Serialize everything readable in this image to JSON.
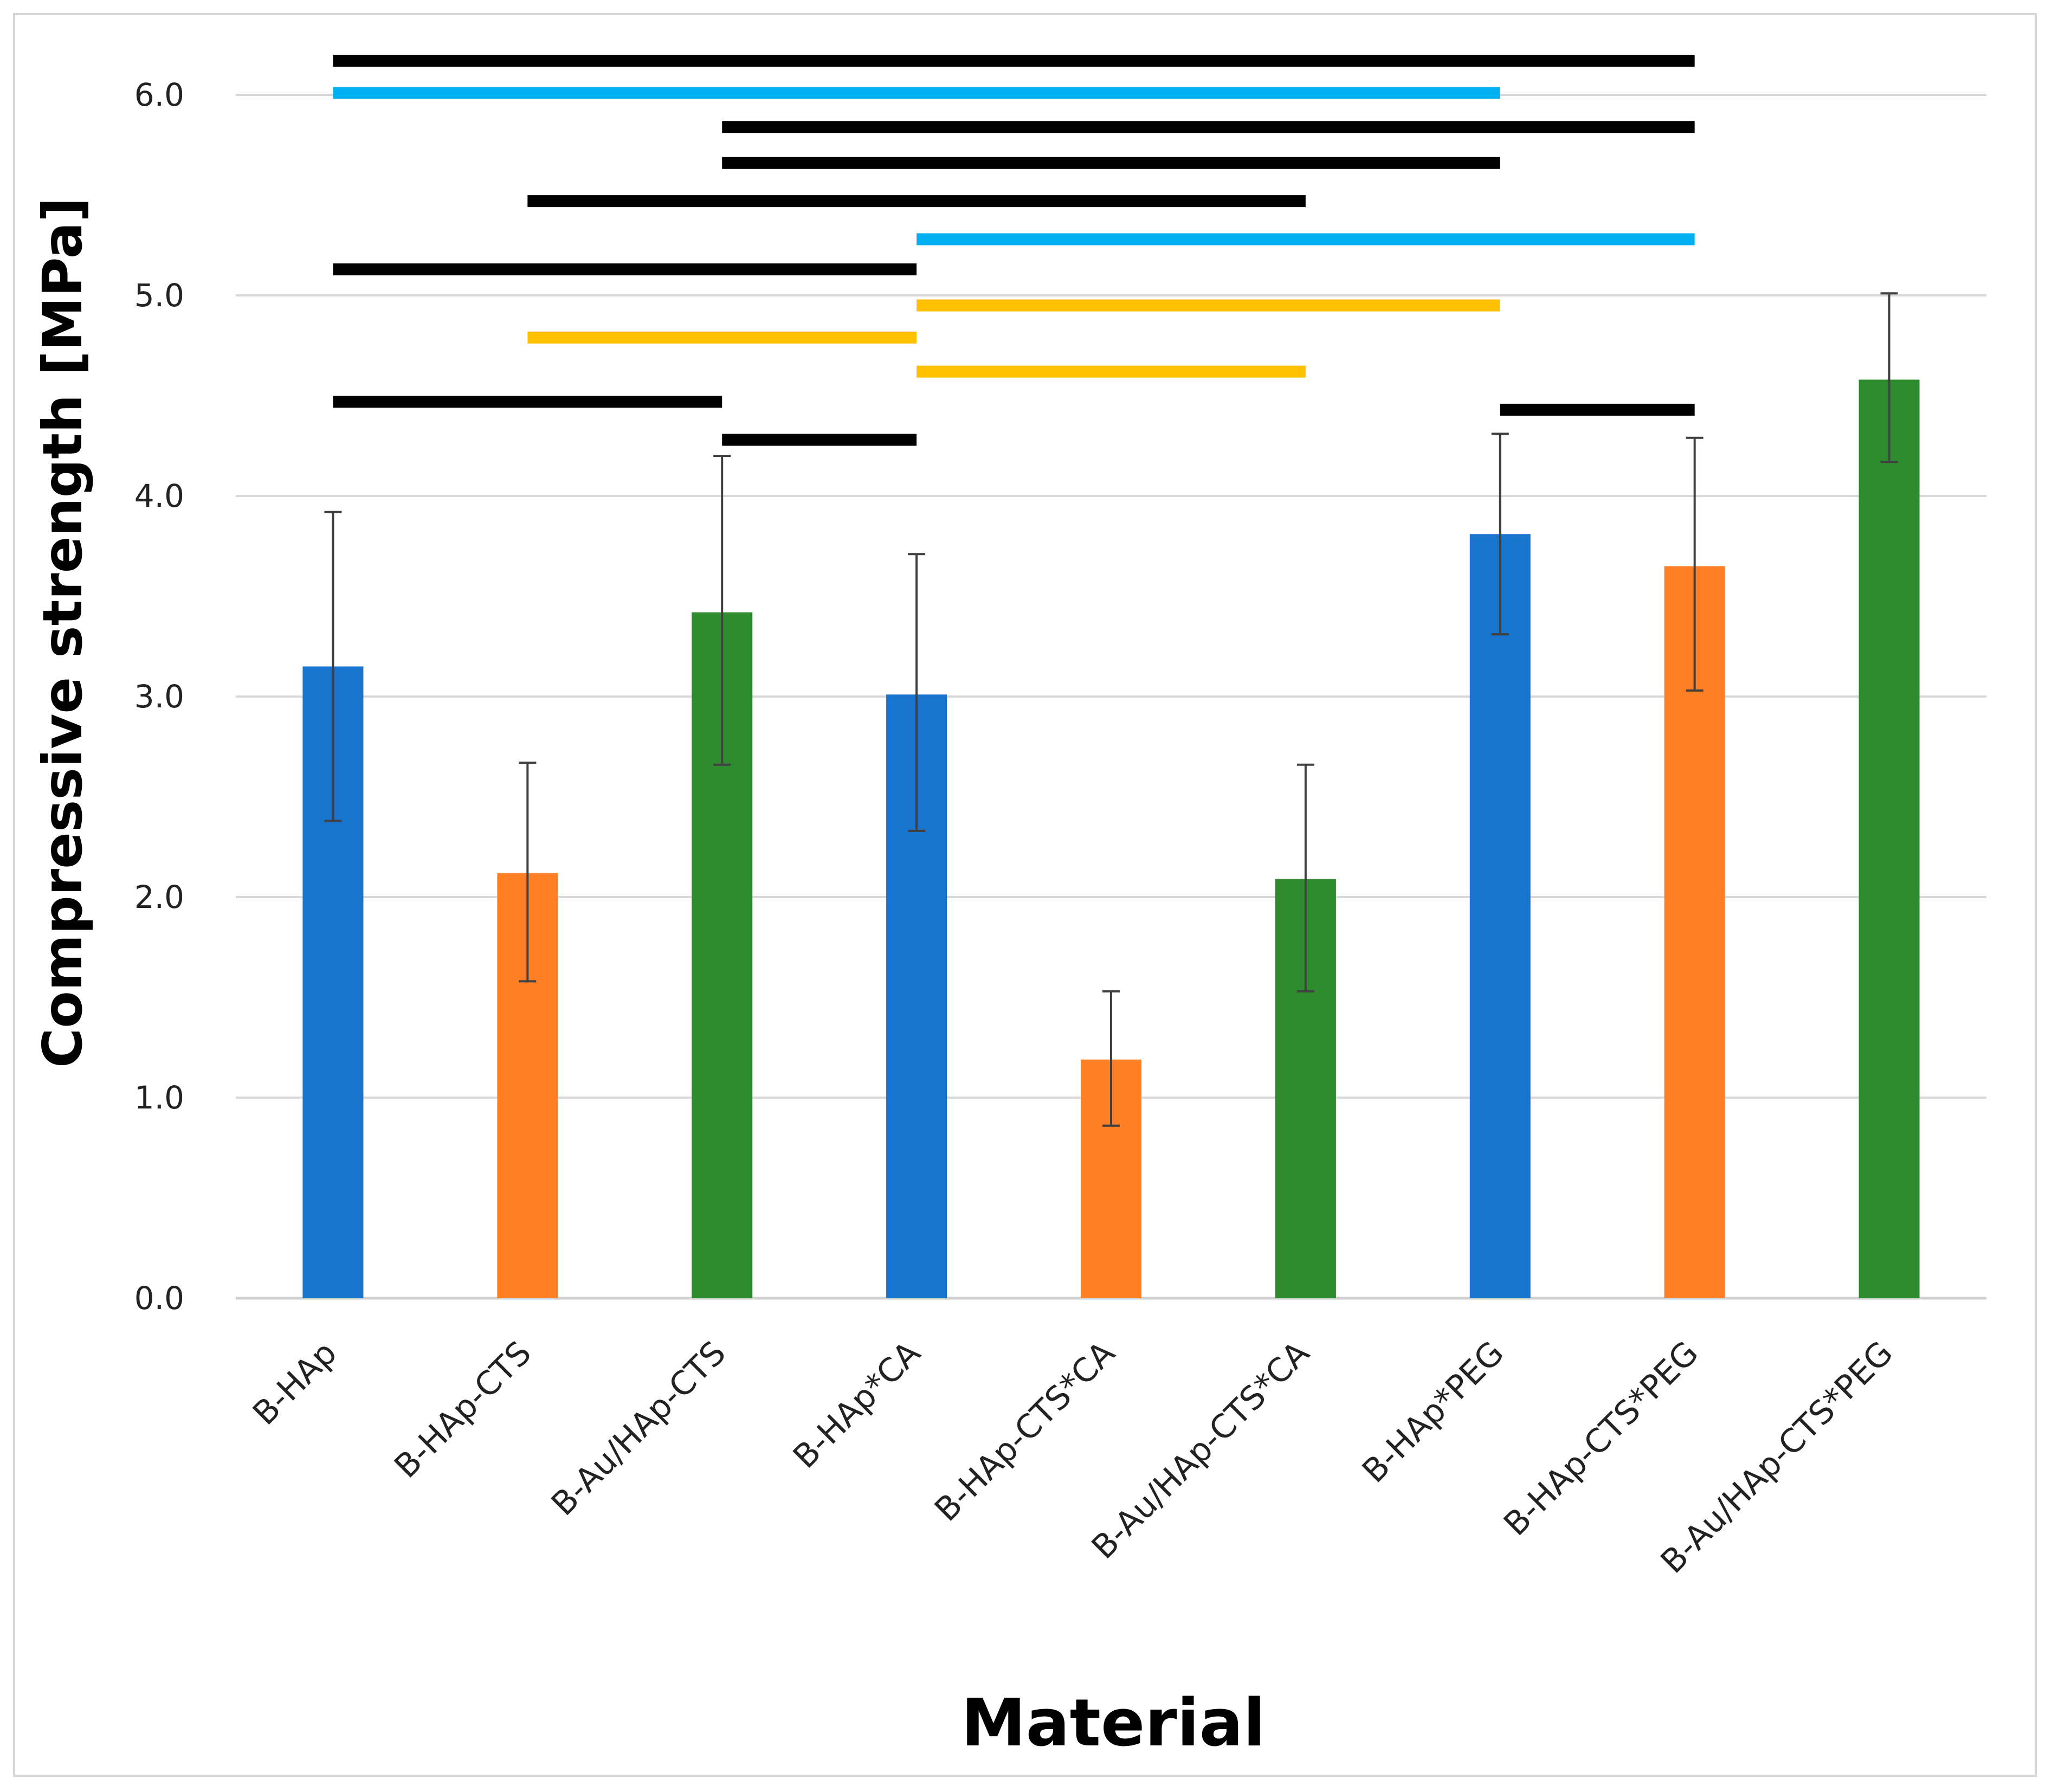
{
  "chart_data": {
    "type": "bar",
    "title": "",
    "xlabel": "Material",
    "ylabel": "Compressive strength [MPa]",
    "ylim": [
      0,
      6
    ],
    "yticks": [
      "0.0",
      "1.0",
      "2.0",
      "3.0",
      "4.0",
      "5.0",
      "6.0"
    ],
    "grid": true,
    "categories": [
      "B-HAp",
      "B-HAp-CTS",
      "B-Au/HAp-CTS",
      "B-HAp*CA",
      "B-HAp-CTS*CA",
      "B-Au/HAp-CTS*CA",
      "B-HAp*PEG",
      "B-HAp-CTS*PEG",
      "B-Au/HAp-CTS*PEG"
    ],
    "values": [
      3.15,
      2.12,
      3.42,
      3.01,
      1.19,
      2.09,
      3.81,
      3.65,
      4.58
    ],
    "error_low": [
      2.38,
      1.58,
      2.66,
      2.33,
      0.86,
      1.53,
      3.31,
      3.03,
      4.17
    ],
    "error_high": [
      3.92,
      2.67,
      4.2,
      3.71,
      1.53,
      2.66,
      4.31,
      4.29,
      5.01
    ],
    "bar_colors": [
      "#1874cd",
      "#ff7f27",
      "#2e8b2e",
      "#1874cd",
      "#ff7f27",
      "#2e8b2e",
      "#1874cd",
      "#ff7f27",
      "#2e8b2e"
    ],
    "significance_bars": [
      {
        "from": 0,
        "to": 7,
        "y": 6.17,
        "color": "#000000"
      },
      {
        "from": 0,
        "to": 6,
        "y": 6.01,
        "color": "#00b0f0"
      },
      {
        "from": 2,
        "to": 7,
        "y": 5.84,
        "color": "#000000"
      },
      {
        "from": 2,
        "to": 6,
        "y": 5.66,
        "color": "#000000"
      },
      {
        "from": 1,
        "to": 5,
        "y": 5.47,
        "color": "#000000"
      },
      {
        "from": 3,
        "to": 7,
        "y": 5.28,
        "color": "#00b0f0"
      },
      {
        "from": 0,
        "to": 3,
        "y": 5.13,
        "color": "#000000"
      },
      {
        "from": 3,
        "to": 6,
        "y": 4.95,
        "color": "#ffc000"
      },
      {
        "from": 1,
        "to": 3,
        "y": 4.79,
        "color": "#ffc000"
      },
      {
        "from": 3,
        "to": 5,
        "y": 4.62,
        "color": "#ffc000"
      },
      {
        "from": 0,
        "to": 2,
        "y": 4.47,
        "color": "#000000"
      },
      {
        "from": 6,
        "to": 7,
        "y": 4.43,
        "color": "#000000"
      },
      {
        "from": 2,
        "to": 3,
        "y": 4.28,
        "color": "#000000"
      }
    ]
  }
}
